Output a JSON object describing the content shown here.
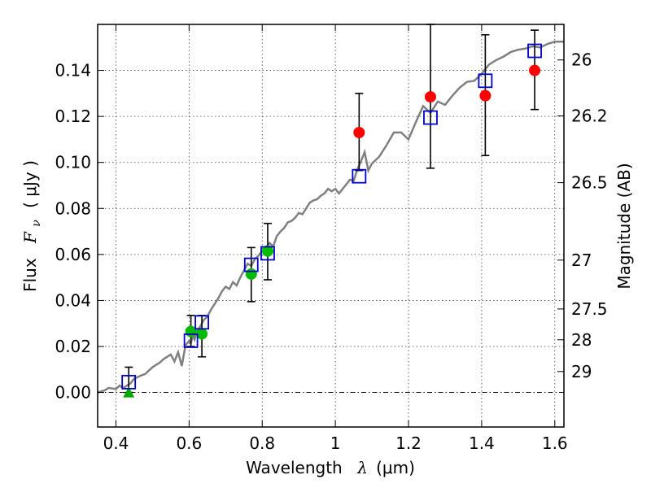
{
  "chart_data": {
    "type": "scatter",
    "xlabel_text": "Wavelength",
    "xlabel_symbol": "λ",
    "xlabel_unit": "(μm)",
    "ylabel_text": "Flux",
    "ylabel_symbol": "F",
    "ylabel_sub": "ν",
    "ylabel_unit": "( μJy )",
    "y2label": "Magnitude (AB)",
    "xlim": [
      0.35,
      1.625
    ],
    "ylim": [
      -0.015,
      0.16
    ],
    "grid": true,
    "x_ticks": [
      {
        "value": 0.4,
        "label": "0.4"
      },
      {
        "value": 0.6,
        "label": "0.6"
      },
      {
        "value": 0.8,
        "label": "0.8"
      },
      {
        "value": 1.0,
        "label": "1"
      },
      {
        "value": 1.2,
        "label": "1.2"
      },
      {
        "value": 1.4,
        "label": "1.4"
      },
      {
        "value": 1.6,
        "label": "1.6"
      }
    ],
    "y_ticks": [
      {
        "value": 0.0,
        "label": "0.00"
      },
      {
        "value": 0.02,
        "label": "0.02"
      },
      {
        "value": 0.04,
        "label": "0.04"
      },
      {
        "value": 0.06,
        "label": "0.06"
      },
      {
        "value": 0.08,
        "label": "0.08"
      },
      {
        "value": 0.1,
        "label": "0.10"
      },
      {
        "value": 0.12,
        "label": "0.12"
      },
      {
        "value": 0.14,
        "label": "0.14"
      }
    ],
    "y2_ticks": [
      {
        "value": 26,
        "label": "26"
      },
      {
        "value": 26.2,
        "label": "26.2"
      },
      {
        "value": 26.5,
        "label": "26.5"
      },
      {
        "value": 27,
        "label": "27"
      },
      {
        "value": 27.5,
        "label": "27.5"
      },
      {
        "value": 28,
        "label": "28"
      },
      {
        "value": 29,
        "label": "29"
      }
    ],
    "model_curve": {
      "color": "#808080",
      "x": [
        0.35,
        0.37,
        0.38,
        0.4,
        0.41,
        0.42,
        0.44,
        0.45,
        0.47,
        0.48,
        0.49,
        0.5,
        0.51,
        0.52,
        0.53,
        0.54,
        0.55,
        0.56,
        0.57,
        0.58,
        0.59,
        0.6,
        0.605,
        0.61,
        0.615,
        0.62,
        0.63,
        0.64,
        0.65,
        0.66,
        0.67,
        0.68,
        0.69,
        0.7,
        0.71,
        0.72,
        0.73,
        0.74,
        0.75,
        0.76,
        0.77,
        0.78,
        0.79,
        0.8,
        0.81,
        0.82,
        0.83,
        0.84,
        0.85,
        0.86,
        0.87,
        0.88,
        0.89,
        0.9,
        0.91,
        0.92,
        0.93,
        0.94,
        0.95,
        0.96,
        0.97,
        0.98,
        0.99,
        1.0,
        1.01,
        1.02,
        1.03,
        1.04,
        1.05,
        1.06,
        1.07,
        1.08,
        1.09,
        1.1,
        1.12,
        1.14,
        1.16,
        1.18,
        1.2,
        1.22,
        1.24,
        1.26,
        1.28,
        1.3,
        1.32,
        1.34,
        1.36,
        1.38,
        1.4,
        1.42,
        1.44,
        1.46,
        1.48,
        1.5,
        1.52,
        1.54,
        1.56,
        1.58,
        1.6,
        1.625
      ],
      "values": [
        0.0,
        0.001,
        0.002,
        0.0015,
        0.003,
        0.002,
        0.004,
        0.006,
        0.0075,
        0.008,
        0.0095,
        0.011,
        0.012,
        0.013,
        0.0145,
        0.0155,
        0.0165,
        0.0135,
        0.0175,
        0.0115,
        0.0205,
        0.0225,
        0.0215,
        0.0245,
        0.023,
        0.0265,
        0.0285,
        0.0315,
        0.033,
        0.036,
        0.0385,
        0.041,
        0.044,
        0.046,
        0.045,
        0.048,
        0.0465,
        0.05,
        0.053,
        0.056,
        0.055,
        0.058,
        0.0595,
        0.0615,
        0.063,
        0.065,
        0.0635,
        0.068,
        0.07,
        0.0715,
        0.074,
        0.0745,
        0.076,
        0.078,
        0.0775,
        0.08,
        0.0825,
        0.0835,
        0.084,
        0.0855,
        0.0865,
        0.0885,
        0.0875,
        0.0885,
        0.0865,
        0.0885,
        0.0905,
        0.0925,
        0.092,
        0.097,
        0.1005,
        0.1045,
        0.0965,
        0.0995,
        0.1025,
        0.1075,
        0.113,
        0.113,
        0.11,
        0.1175,
        0.1245,
        0.1215,
        0.1265,
        0.125,
        0.129,
        0.1325,
        0.135,
        0.1355,
        0.1385,
        0.1425,
        0.1445,
        0.146,
        0.148,
        0.149,
        0.1495,
        0.1505,
        0.15,
        0.1515,
        0.1525,
        0.1525
      ]
    },
    "series": [
      {
        "marker": "open-square",
        "color": "#0000cc",
        "x": [
          0.435,
          0.605,
          0.635,
          0.77,
          0.815,
          1.065,
          1.26,
          1.41,
          1.545
        ],
        "values": [
          0.0045,
          0.0225,
          0.0305,
          0.0555,
          0.0605,
          0.094,
          0.1195,
          0.1355,
          0.1485
        ]
      },
      {
        "marker": "filled-circle",
        "color": "#00bb00",
        "x": [
          0.605,
          0.635,
          0.77,
          0.815
        ],
        "values": [
          0.0265,
          0.0255,
          0.0515,
          0.0615
        ]
      },
      {
        "marker": "filled-circle",
        "color": "#ff0000",
        "x": [
          1.065,
          1.26,
          1.41,
          1.545
        ],
        "values": [
          0.113,
          0.1285,
          0.129,
          0.14
        ]
      },
      {
        "marker": "filled-triangle",
        "color": "#00aa00",
        "x": [
          0.435
        ],
        "values": [
          0.0
        ]
      }
    ],
    "error_bars": [
      {
        "x": 0.435,
        "low": 0.0,
        "high": 0.011
      },
      {
        "x": 0.605,
        "low": 0.02,
        "high": 0.0335
      },
      {
        "x": 0.635,
        "low": 0.0155,
        "high": 0.0335
      },
      {
        "x": 0.77,
        "low": 0.0395,
        "high": 0.063
      },
      {
        "x": 0.815,
        "low": 0.049,
        "high": 0.0735
      },
      {
        "x": 1.065,
        "low": 0.0965,
        "high": 0.13
      },
      {
        "x": 1.26,
        "low": 0.0975,
        "high": 0.16
      },
      {
        "x": 1.41,
        "low": 0.103,
        "high": 0.1555
      },
      {
        "x": 1.545,
        "low": 0.123,
        "high": 0.1575
      }
    ]
  }
}
